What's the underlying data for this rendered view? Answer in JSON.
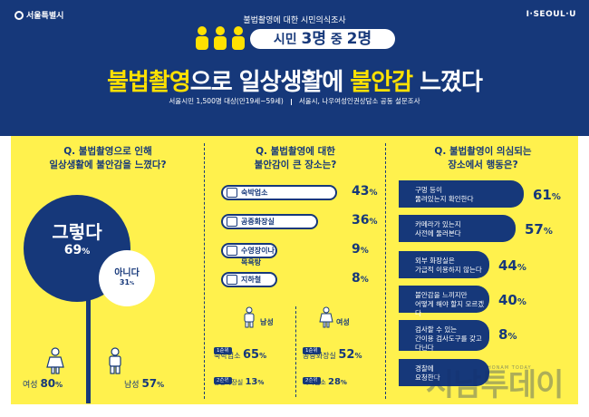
{
  "header": {
    "logo_text": "서울특별시",
    "brand": "I·SEOUL·U",
    "survey_label": "불법촬영에 대한 시민의식조사",
    "headline_prefix": "시민 ",
    "headline_num1": "3명",
    "headline_mid": " 중 ",
    "headline_num2": "2명",
    "title_part1": "불법촬영",
    "title_part2": "으로 일상생활에 ",
    "title_part3": "불안감",
    "title_part4": " 느꼈다",
    "meta_left": "서울시민 1,500명 대상(만19세~59세)",
    "meta_right": "서울시, 나우여성인권상담소 공동 설문조사"
  },
  "colors": {
    "navy": "#16387a",
    "yellow": "#fff14d",
    "white": "#ffffff"
  },
  "q1": {
    "title_line1": "Q. 불법촬영으로 인해",
    "title_line2": "일상생활에 불안감을 느꼈다?",
    "yes_label": "그렇다",
    "yes_pct": "69",
    "pct_unit": "%",
    "no_label": "아니다",
    "no_pct": "31",
    "female_label": "여성",
    "female_pct": "80",
    "male_label": "남성",
    "male_pct": "57",
    "icons": [
      "female-person-icon",
      "male-person-icon"
    ]
  },
  "q2": {
    "title_line1": "Q. 불법촬영에 대한",
    "title_line2": "불안감이 큰 장소는?",
    "items": [
      {
        "label": "숙박업소",
        "pct": "43",
        "value": 43,
        "icon": "house-icon"
      },
      {
        "label": "공중화장실",
        "pct": "36",
        "value": 36,
        "icon": "restroom-icon"
      },
      {
        "label": "수영장이나 목욕탕",
        "pct": "9",
        "value": 9,
        "icon": "pool-icon"
      },
      {
        "label": "지하철",
        "pct": "8",
        "value": 8,
        "icon": "subway-icon"
      }
    ],
    "pct_unit": "%",
    "male_label": "남성",
    "female_label": "여성",
    "male_rank1": "1순위",
    "male_place1": "숙박업소",
    "male_pct1": "65",
    "male_rank2": "2순위",
    "male_place2": "공중화장실",
    "male_pct2": "13",
    "female_rank1": "1순위",
    "female_place1": "공중화장실",
    "female_pct1": "52",
    "female_rank2": "2순위",
    "female_place2": "숙박업소",
    "female_pct2": "28"
  },
  "q3": {
    "title_line1": "Q. 불법촬영이 의심되는",
    "title_line2": "장소에서 행동은?",
    "items": [
      {
        "line1": "구멍 등이",
        "line2": "뚫려있는지 확인한다",
        "pct": "61",
        "value": 61
      },
      {
        "line1": "카메라가 있는지",
        "line2": "사전에 둘러본다",
        "pct": "57",
        "value": 57
      },
      {
        "line1": "외부 화장실은",
        "line2": "가급적 이용하지 않는다",
        "pct": "44",
        "value": 44
      },
      {
        "line1": "불안감을 느끼지만",
        "line2": "어떻게 해야 할지 모르겠다",
        "pct": "40",
        "value": 40
      },
      {
        "line1": "검사할 수 있는",
        "line2": "간이용 검사도구를 갖고",
        "line3": "다닌다",
        "pct": "8",
        "value": 8
      },
      {
        "line1": "경찰에",
        "line2": "요청한다"
      }
    ],
    "pct_unit": "%"
  },
  "watermark": {
    "text": "시남투데이",
    "sub": "HONAM TODAY"
  }
}
